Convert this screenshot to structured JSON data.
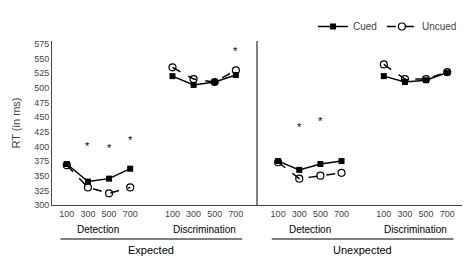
{
  "chart_data": {
    "type": "line",
    "ylabel": "RT (in ms)",
    "categories": [
      "100",
      "300",
      "500",
      "700",
      null,
      "100",
      "300",
      "500",
      "700",
      null,
      "100",
      "300",
      "500",
      "700",
      null,
      "100",
      "300",
      "500",
      "700"
    ],
    "group_labels": [
      "Detection",
      "Discrimination",
      "Detection",
      "Discrimination"
    ],
    "super_labels": [
      "Expected",
      "Unexpected"
    ],
    "series": [
      {
        "name": "Cued",
        "color": "#000000",
        "marker": "square",
        "line_style": "solid",
        "values": [
          370,
          340,
          345,
          362,
          null,
          520,
          505,
          510,
          522,
          null,
          375,
          360,
          370,
          375,
          null,
          520,
          510,
          513,
          526
        ]
      },
      {
        "name": "Uncued",
        "color": "#000000",
        "marker": "circle-open",
        "line_style": "dash",
        "values": [
          368,
          330,
          320,
          330,
          null,
          535,
          515,
          510,
          530,
          null,
          373,
          345,
          350,
          355,
          null,
          540,
          515,
          515,
          527
        ]
      }
    ],
    "annotations": [
      {
        "x": 1,
        "y": 387,
        "text": "*"
      },
      {
        "x": 2,
        "y": 383,
        "text": "*"
      },
      {
        "x": 3,
        "y": 398,
        "text": "*"
      },
      {
        "x": 8,
        "y": 549,
        "text": "*"
      },
      {
        "x": 11,
        "y": 420,
        "text": "*"
      },
      {
        "x": 12,
        "y": 430,
        "text": "*"
      }
    ],
    "ylim": [
      300,
      580
    ],
    "yticks": [
      300,
      325,
      350,
      375,
      400,
      425,
      450,
      475,
      500,
      525,
      550,
      575
    ],
    "grid": false,
    "legend": "upper right"
  }
}
